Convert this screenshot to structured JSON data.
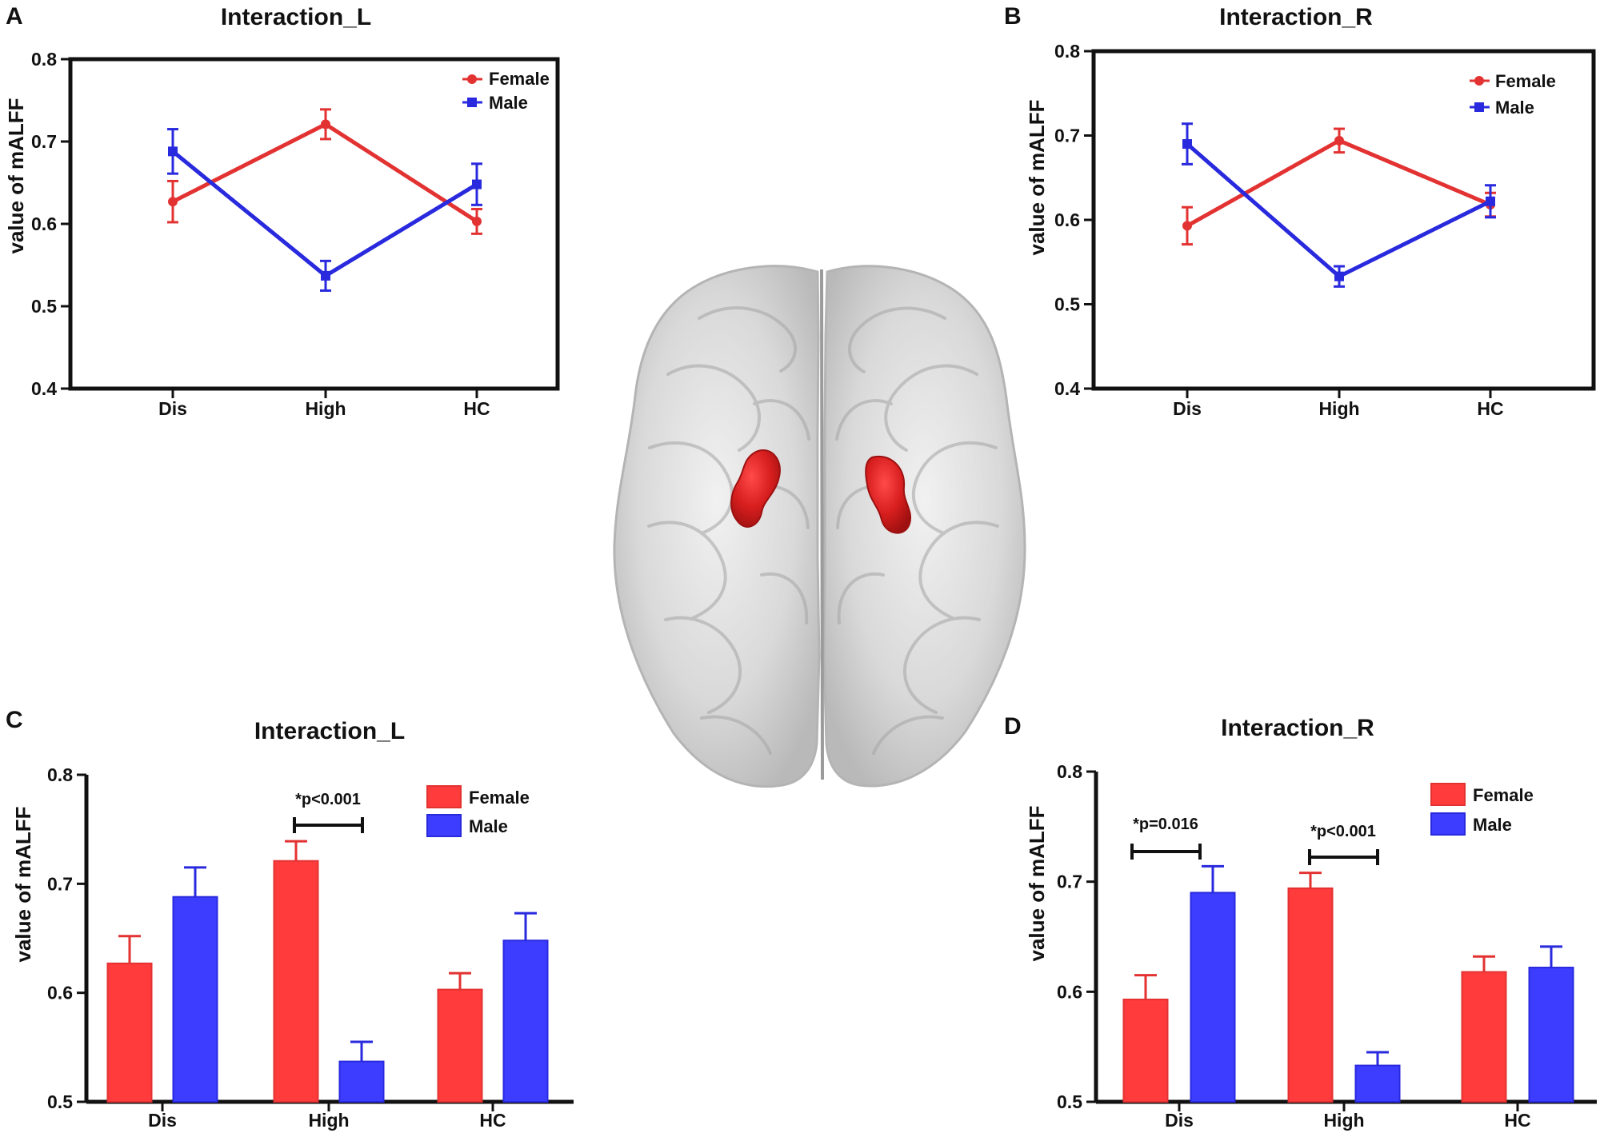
{
  "figure": {
    "brain_image_label": "brain-render-superior-view"
  },
  "colors": {
    "female": "#ff3b3b",
    "male": "#3d3dff",
    "female_line": "#e33232",
    "male_line": "#2929de",
    "axis": "#111111",
    "brain_region": "#d91f1f",
    "brain_surface": "#d2d2d2"
  },
  "chart_data": [
    {
      "panel": "A",
      "type": "line",
      "title": "Interaction_L",
      "xlabel": "",
      "ylabel": "value of mALFF",
      "categories": [
        "Dis",
        "High",
        "HC"
      ],
      "ylim": [
        0.4,
        0.8
      ],
      "yticks": [
        "0.4",
        "0.5",
        "0.6",
        "0.7",
        "0.8"
      ],
      "legend": "top-right",
      "grid": false,
      "series": [
        {
          "name": "Female",
          "values": [
            0.627,
            0.721,
            0.603
          ],
          "errors": [
            0.025,
            0.018,
            0.015
          ]
        },
        {
          "name": "Male",
          "values": [
            0.688,
            0.537,
            0.648
          ],
          "errors": [
            0.027,
            0.018,
            0.025
          ]
        }
      ]
    },
    {
      "panel": "B",
      "type": "line",
      "title": "Interaction_R",
      "xlabel": "",
      "ylabel": "value of mALFF",
      "categories": [
        "Dis",
        "High",
        "HC"
      ],
      "ylim": [
        0.4,
        0.8
      ],
      "yticks": [
        "0.4",
        "0.5",
        "0.6",
        "0.7",
        "0.8"
      ],
      "legend": "top-right",
      "grid": false,
      "series": [
        {
          "name": "Female",
          "values": [
            0.593,
            0.694,
            0.618
          ],
          "errors": [
            0.022,
            0.014,
            0.014
          ]
        },
        {
          "name": "Male",
          "values": [
            0.69,
            0.533,
            0.622
          ],
          "errors": [
            0.024,
            0.012,
            0.019
          ]
        }
      ]
    },
    {
      "panel": "C",
      "type": "bar",
      "title": "Interaction_L",
      "xlabel": "",
      "ylabel": "value of mALFF",
      "categories": [
        "Dis",
        "High",
        "HC"
      ],
      "ylim": [
        0.5,
        0.8
      ],
      "yticks": [
        "0.5",
        "0.6",
        "0.7",
        "0.8"
      ],
      "legend": "top-right",
      "grid": false,
      "series": [
        {
          "name": "Female",
          "values": [
            0.627,
            0.721,
            0.603
          ],
          "errors": [
            0.025,
            0.018,
            0.015
          ]
        },
        {
          "name": "Male",
          "values": [
            0.688,
            0.537,
            0.648
          ],
          "errors": [
            0.027,
            0.018,
            0.025
          ]
        }
      ],
      "annotations": [
        {
          "text": "*p<0.001",
          "category_index": 1
        }
      ]
    },
    {
      "panel": "D",
      "type": "bar",
      "title": "Interaction_R",
      "xlabel": "",
      "ylabel": "value of mALFF",
      "categories": [
        "Dis",
        "High",
        "HC"
      ],
      "ylim": [
        0.5,
        0.8
      ],
      "yticks": [
        "0.5",
        "0.6",
        "0.7",
        "0.8"
      ],
      "legend": "top-right",
      "grid": false,
      "series": [
        {
          "name": "Female",
          "values": [
            0.593,
            0.694,
            0.618
          ],
          "errors": [
            0.022,
            0.014,
            0.014
          ]
        },
        {
          "name": "Male",
          "values": [
            0.69,
            0.533,
            0.622
          ],
          "errors": [
            0.024,
            0.012,
            0.019
          ]
        }
      ],
      "annotations": [
        {
          "text": "*p=0.016",
          "category_index": 0
        },
        {
          "text": "*p<0.001",
          "category_index": 1
        }
      ]
    }
  ]
}
